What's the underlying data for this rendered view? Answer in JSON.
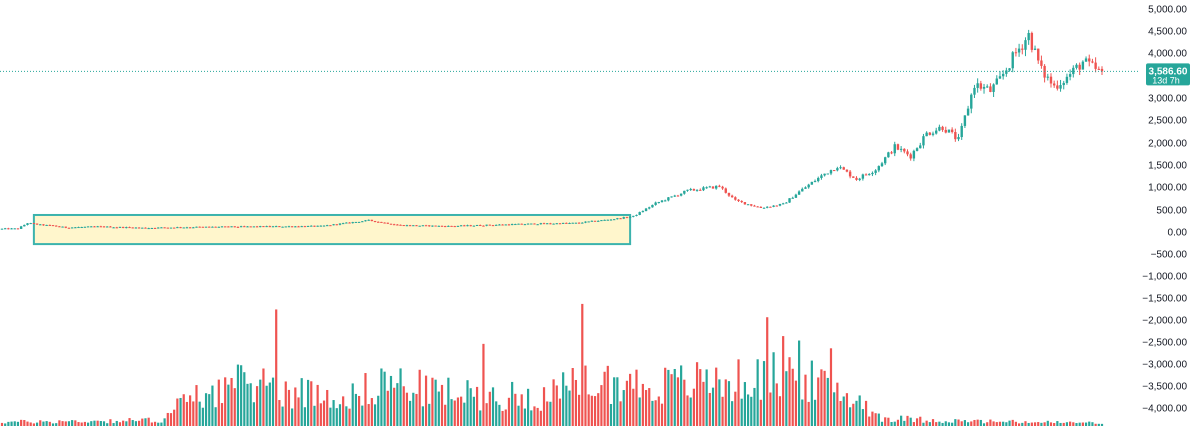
{
  "chart_data": {
    "type": "candlestick",
    "title": "",
    "xlabel": "",
    "ylabel": "",
    "ylim": [
      -4250,
      5100
    ],
    "y_ticks": [
      5000,
      4500,
      4000,
      3500,
      3000,
      2500,
      2000,
      1500,
      1000,
      500,
      0,
      -500,
      -1000,
      -1500,
      -2000,
      -2500,
      -3000,
      -3500,
      -4000
    ],
    "y_tick_labels": [
      "5,000.00",
      "4,500.00",
      "4,000.00",
      "3,500.00",
      "3,000.00",
      "2,500.00",
      "2,000.00",
      "1,500.00",
      "1,000.00",
      "500.00",
      "0.00",
      "−500.00",
      "−1,000.00",
      "−1,500.00",
      "−2,000.00",
      "−2,500.00",
      "−3,000.00",
      "−3,500.00",
      "−4,000.00"
    ],
    "last_price": {
      "value": 3586.6,
      "label": "3,586.60",
      "countdown": "13d 7h"
    },
    "up_color": "#26a69a",
    "down_color": "#ef5350",
    "highlight": {
      "fill": "#fff6cc",
      "stroke": "#3bb3ad",
      "x_from": 10,
      "x_to": 197,
      "y_from": -270,
      "y_to": 380
    },
    "price_anchors": [
      [
        0,
        70
      ],
      [
        5,
        75
      ],
      [
        8,
        200
      ],
      [
        12,
        160
      ],
      [
        16,
        140
      ],
      [
        20,
        100
      ],
      [
        30,
        120
      ],
      [
        45,
        90
      ],
      [
        60,
        110
      ],
      [
        80,
        120
      ],
      [
        100,
        130
      ],
      [
        115,
        260
      ],
      [
        125,
        150
      ],
      [
        140,
        130
      ],
      [
        150,
        150
      ],
      [
        165,
        180
      ],
      [
        180,
        200
      ],
      [
        192,
        290
      ],
      [
        198,
        350
      ],
      [
        205,
        640
      ],
      [
        215,
        920
      ],
      [
        225,
        1020
      ],
      [
        230,
        700
      ],
      [
        238,
        540
      ],
      [
        245,
        620
      ],
      [
        250,
        900
      ],
      [
        258,
        1300
      ],
      [
        262,
        1470
      ],
      [
        268,
        1180
      ],
      [
        274,
        1400
      ],
      [
        280,
        1900
      ],
      [
        285,
        1700
      ],
      [
        290,
        2200
      ],
      [
        295,
        2350
      ],
      [
        300,
        2050
      ],
      [
        305,
        3300
      ],
      [
        310,
        3150
      ],
      [
        313,
        3400
      ],
      [
        318,
        4000
      ],
      [
        322,
        4400
      ],
      [
        326,
        3600
      ],
      [
        330,
        3250
      ],
      [
        334,
        3450
      ],
      [
        339,
        3800
      ],
      [
        344,
        3586.6
      ]
    ],
    "volume_anchors": [
      [
        0,
        0.04
      ],
      [
        30,
        0.05
      ],
      [
        50,
        0.06
      ],
      [
        55,
        0.2
      ],
      [
        65,
        0.35
      ],
      [
        80,
        0.45
      ],
      [
        90,
        0.35
      ],
      [
        110,
        0.3
      ],
      [
        120,
        0.45
      ],
      [
        135,
        0.35
      ],
      [
        150,
        0.3
      ],
      [
        170,
        0.3
      ],
      [
        185,
        0.45
      ],
      [
        205,
        0.4
      ],
      [
        220,
        0.45
      ],
      [
        235,
        0.45
      ],
      [
        248,
        0.55
      ],
      [
        255,
        0.42
      ],
      [
        268,
        0.28
      ],
      [
        276,
        0.08
      ],
      [
        300,
        0.05
      ],
      [
        320,
        0.04
      ],
      [
        345,
        0.03
      ]
    ],
    "volume_spikes": [
      [
        86,
        1.05
      ],
      [
        151,
        0.74
      ],
      [
        182,
        1.1
      ],
      [
        240,
        0.98
      ],
      [
        245,
        0.81
      ],
      [
        250,
        0.77
      ],
      [
        260,
        0.7
      ]
    ]
  }
}
